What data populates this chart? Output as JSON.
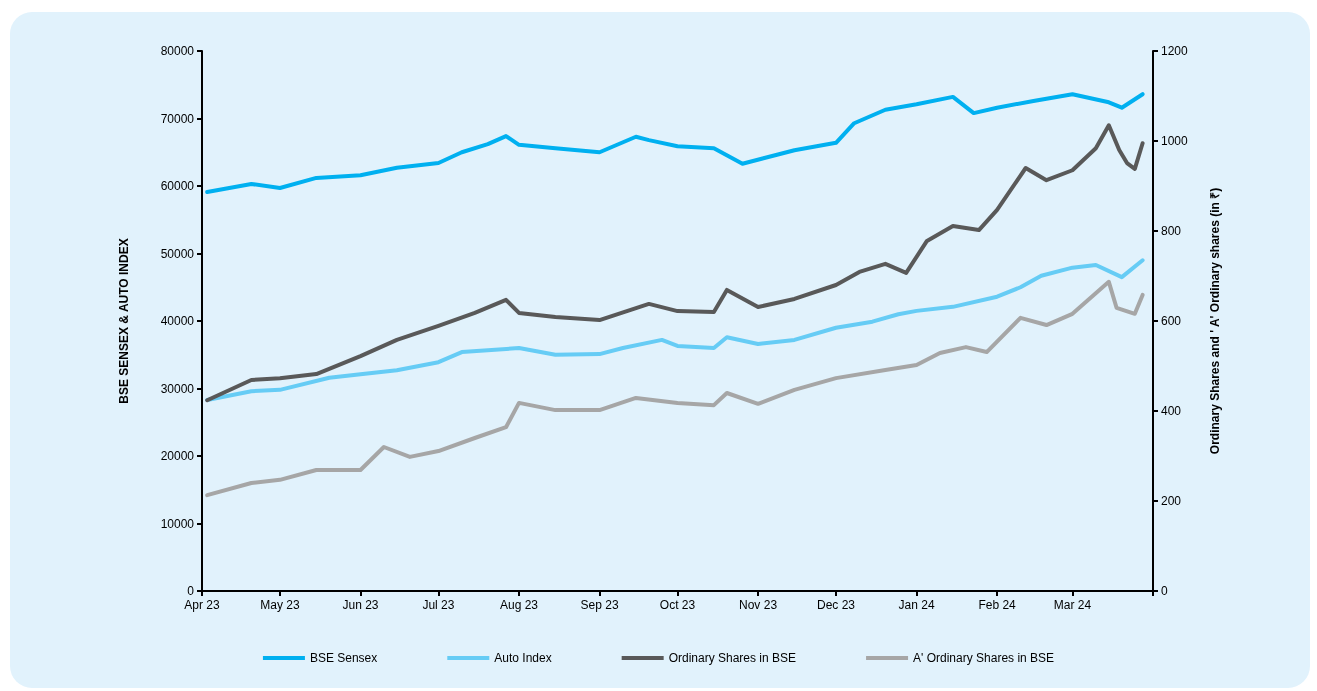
{
  "chart_data": {
    "type": "line",
    "ylabel": "BSE SENSEX & AUTO INDEX",
    "y2label": "Ordinary Shares and ' A' Ordinary shares (in ₹)",
    "xlim": [
      "2023-04-01",
      "2024-04-01"
    ],
    "xticks": [
      {
        "value": "2023-04-01",
        "label": "Apr 23"
      },
      {
        "value": "2023-05-01",
        "label": "May 23"
      },
      {
        "value": "2023-06-01",
        "label": "Jun 23"
      },
      {
        "value": "2023-07-01",
        "label": "Jul 23"
      },
      {
        "value": "2023-08-01",
        "label": "Aug 23"
      },
      {
        "value": "2023-09-01",
        "label": "Sep 23"
      },
      {
        "value": "2023-10-01",
        "label": "Oct 23"
      },
      {
        "value": "2023-11-01",
        "label": "Nov 23"
      },
      {
        "value": "2023-12-01",
        "label": "Dec 23"
      },
      {
        "value": "2024-01-01",
        "label": "Jan 24"
      },
      {
        "value": "2024-02-01",
        "label": "Feb 24"
      },
      {
        "value": "2024-03-01",
        "label": "Mar 24"
      },
      {
        "value": "2024-04-01",
        "label": null
      }
    ],
    "ylim": [
      0,
      80000
    ],
    "yticks": [
      0,
      10000,
      20000,
      30000,
      40000,
      50000,
      60000,
      70000,
      80000
    ],
    "y2lim": [
      0,
      1200
    ],
    "y2ticks": [
      0,
      200,
      400,
      600,
      800,
      1000,
      1200
    ],
    "grid": false,
    "legend": "bottom",
    "marker": "none",
    "line_style": "solid",
    "series": [
      {
        "name": "BSE Sensex",
        "color": "#00b0f0",
        "x": [
          "2023-04-03",
          "2023-04-20",
          "2023-05-01",
          "2023-05-15",
          "2023-06-01",
          "2023-06-15",
          "2023-07-01",
          "2023-07-10",
          "2023-07-20",
          "2023-07-27",
          "2023-08-01",
          "2023-08-15",
          "2023-09-01",
          "2023-09-15",
          "2023-09-20",
          "2023-10-01",
          "2023-10-15",
          "2023-10-26",
          "2023-11-15",
          "2023-12-01",
          "2023-12-08",
          "2023-12-20",
          "2024-01-01",
          "2024-01-15",
          "2024-01-23",
          "2024-02-01",
          "2024-02-15",
          "2024-03-01",
          "2024-03-15",
          "2024-03-20",
          "2024-03-28"
        ],
        "values": [
          59100,
          60300,
          59700,
          61200,
          61600,
          62700,
          63400,
          65000,
          66200,
          67400,
          66100,
          65600,
          65000,
          67300,
          66800,
          65900,
          65600,
          63300,
          65300,
          66400,
          69300,
          71300,
          72100,
          73200,
          70800,
          71600,
          72600,
          73600,
          72400,
          71600,
          73600
        ]
      },
      {
        "name": "Auto Index",
        "color": "#66ccf5",
        "x": [
          "2023-04-03",
          "2023-04-20",
          "2023-05-01",
          "2023-05-20",
          "2023-06-01",
          "2023-06-15",
          "2023-07-01",
          "2023-07-10",
          "2023-08-01",
          "2023-08-15",
          "2023-09-01",
          "2023-09-10",
          "2023-09-25",
          "2023-10-01",
          "2023-10-15",
          "2023-10-20",
          "2023-11-01",
          "2023-11-15",
          "2023-12-01",
          "2023-12-15",
          "2023-12-25",
          "2024-01-01",
          "2024-01-15",
          "2024-02-01",
          "2024-02-10",
          "2024-02-18",
          "2024-03-01",
          "2024-03-10",
          "2024-03-20",
          "2024-03-28"
        ],
        "values": [
          28300,
          29600,
          29800,
          31600,
          32100,
          32700,
          33900,
          35400,
          36000,
          35000,
          35100,
          36000,
          37200,
          36300,
          36000,
          37600,
          36600,
          37200,
          39000,
          39900,
          41000,
          41500,
          42100,
          43600,
          45000,
          46700,
          47900,
          48300,
          46500,
          49000
        ]
      },
      {
        "name": "Ordinary Shares in BSE",
        "color": "#595959",
        "axis": "y2",
        "x": [
          "2023-04-03",
          "2023-04-20",
          "2023-05-01",
          "2023-05-15",
          "2023-06-01",
          "2023-06-15",
          "2023-07-01",
          "2023-07-15",
          "2023-07-27",
          "2023-08-01",
          "2023-08-15",
          "2023-09-01",
          "2023-09-20",
          "2023-10-01",
          "2023-10-15",
          "2023-10-20",
          "2023-11-01",
          "2023-11-15",
          "2023-12-01",
          "2023-12-10",
          "2023-12-20",
          "2023-12-28",
          "2024-01-05",
          "2024-01-15",
          "2024-01-25",
          "2024-02-01",
          "2024-02-12",
          "2024-02-20",
          "2024-03-01",
          "2024-03-10",
          "2024-03-15",
          "2024-03-19",
          "2024-03-22",
          "2024-03-25",
          "2024-03-28"
        ],
        "values": [
          424,
          469,
          473,
          482,
          522,
          558,
          589,
          618,
          647,
          618,
          609,
          602,
          638,
          622,
          620,
          669,
          631,
          649,
          680,
          709,
          727,
          707,
          778,
          811,
          802,
          847,
          940,
          913,
          935,
          984,
          1035,
          980,
          951,
          938,
          995
        ]
      },
      {
        "name": "A' Ordinary Shares in BSE",
        "color": "#a6a6a6",
        "axis": "y2",
        "x": [
          "2023-04-03",
          "2023-04-20",
          "2023-05-01",
          "2023-05-15",
          "2023-06-01",
          "2023-06-10",
          "2023-06-20",
          "2023-07-01",
          "2023-07-15",
          "2023-07-27",
          "2023-08-01",
          "2023-08-15",
          "2023-09-01",
          "2023-09-15",
          "2023-10-01",
          "2023-10-15",
          "2023-10-20",
          "2023-11-01",
          "2023-11-15",
          "2023-12-01",
          "2023-12-20",
          "2024-01-01",
          "2024-01-10",
          "2024-01-20",
          "2024-01-28",
          "2024-02-10",
          "2024-02-20",
          "2024-03-01",
          "2024-03-15",
          "2024-03-18",
          "2024-03-25",
          "2024-03-28"
        ],
        "values": [
          213,
          240,
          247,
          269,
          269,
          320,
          298,
          311,
          340,
          364,
          418,
          402,
          402,
          429,
          418,
          413,
          440,
          416,
          447,
          473,
          491,
          502,
          529,
          542,
          531,
          607,
          591,
          616,
          687,
          629,
          616,
          658
        ]
      }
    ]
  }
}
